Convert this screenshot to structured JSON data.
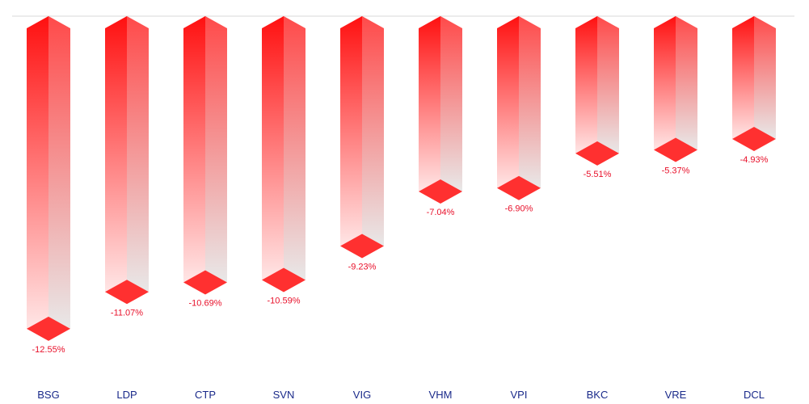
{
  "chart_data": {
    "type": "bar",
    "orientation": "vertical-negative",
    "style": "3d-column",
    "categories": [
      "BSG",
      "LDP",
      "CTP",
      "SVN",
      "VIG",
      "VHM",
      "VPI",
      "BKC",
      "VRE",
      "DCL"
    ],
    "values": [
      -12.55,
      -11.07,
      -10.69,
      -10.59,
      -9.23,
      -7.04,
      -6.9,
      -5.51,
      -5.37,
      -4.93
    ],
    "value_labels": [
      "-12.55%",
      "-11.07%",
      "-10.69%",
      "-10.59%",
      "-9.23%",
      "-7.04%",
      "-6.90%",
      "-5.51%",
      "-5.37%",
      "-4.93%"
    ],
    "title": "",
    "xlabel": "",
    "ylabel": "",
    "ylim": [
      -13.3,
      0
    ],
    "grid": false,
    "legend": "none",
    "colors": {
      "bar_top": "#ff1010",
      "bar_bottom": "#ffe6e6",
      "side_face": "#e8e8e8",
      "cap": "#ff3030",
      "value_label": "#e8102a",
      "category_label": "#1a2a8a",
      "baseline": "#d8d8d8"
    }
  }
}
